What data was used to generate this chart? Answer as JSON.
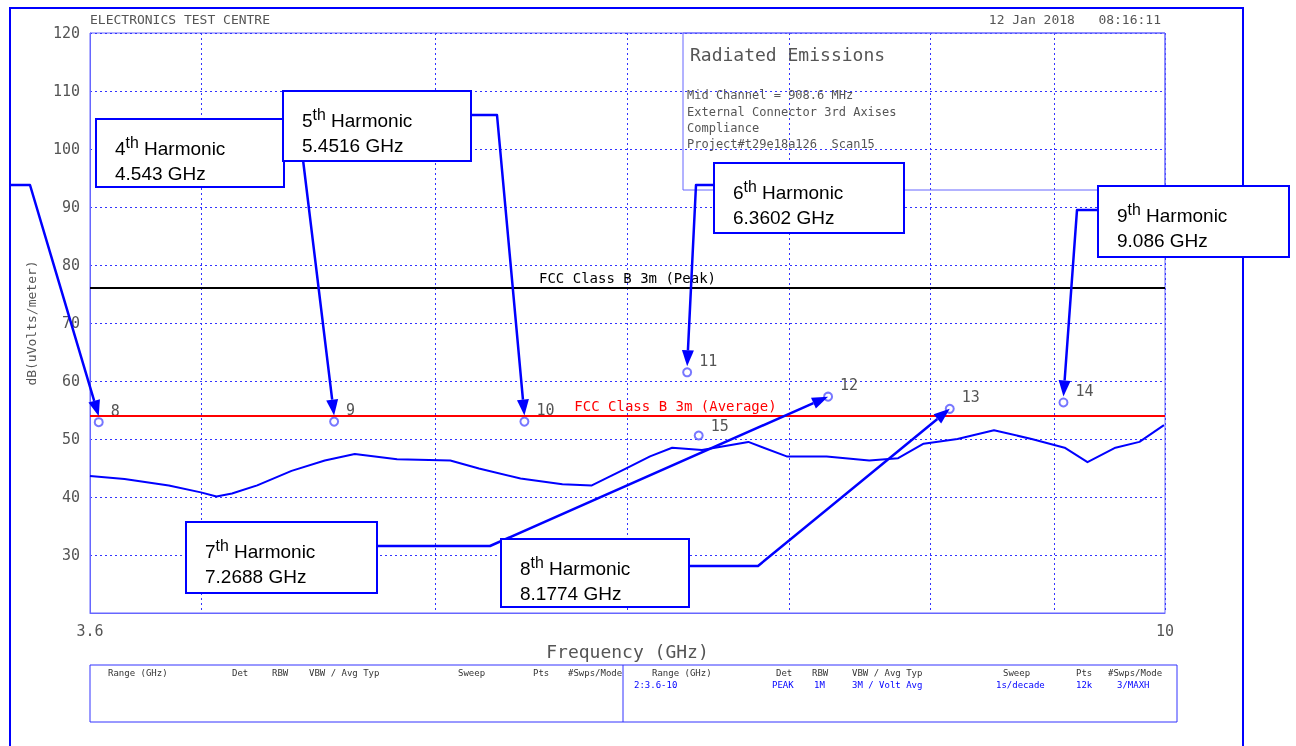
{
  "chart_data": {
    "type": "line",
    "title": "Radiated Emissions",
    "xlabel": "Frequency (GHz)",
    "ylabel": "dB(uVolts/meter)",
    "log": "x",
    "grid": true,
    "marker": "none",
    "xlim": [
      3.6,
      10
    ],
    "xticks": [
      {
        "value": 3.6,
        "label": "3.6"
      },
      {
        "value": 4,
        "label": null
      },
      {
        "value": 5,
        "label": null
      },
      {
        "value": 6,
        "label": null
      },
      {
        "value": 7,
        "label": null
      },
      {
        "value": 8,
        "label": null
      },
      {
        "value": 9,
        "label": null
      },
      {
        "value": 10,
        "label": "10"
      }
    ],
    "ylim": [
      20,
      120
    ],
    "yticks": [
      {
        "value": 20,
        "label": null
      },
      30,
      40,
      50,
      60,
      70,
      80,
      90,
      100,
      110,
      120
    ],
    "series": [
      {
        "color": "#0000ff",
        "line_style": "solid",
        "x": [
          3.6,
          3.72,
          3.88,
          4.0,
          4.06,
          4.12,
          4.22,
          4.36,
          4.5,
          4.63,
          4.82,
          5.07,
          5.21,
          5.42,
          5.64,
          5.8,
          5.99,
          6.13,
          6.26,
          6.44,
          6.73,
          6.98,
          7.25,
          7.55,
          7.76,
          7.95,
          8.21,
          8.5,
          8.81,
          9.09,
          9.29,
          9.54,
          9.76,
          9.99
        ],
        "values": [
          43.6,
          43.1,
          42.0,
          40.8,
          40.1,
          40.6,
          42.0,
          44.5,
          46.3,
          47.4,
          46.5,
          46.3,
          44.9,
          43.2,
          42.2,
          42.0,
          44.9,
          47.0,
          48.5,
          48.1,
          49.5,
          47.0,
          47.0,
          46.3,
          46.7,
          49.2,
          50.0,
          51.5,
          50.0,
          48.5,
          46.0,
          48.5,
          49.5,
          52.4
        ]
      },
      {
        "type": "scatter",
        "marker": "circle",
        "color": "#5555ff",
        "x": [
          3.63,
          4.54,
          5.44,
          6.35,
          7.26,
          8.15,
          9.08,
          6.42
        ],
        "values": [
          52.9,
          53.0,
          53.0,
          61.5,
          57.3,
          55.2,
          56.3,
          50.6
        ]
      }
    ],
    "ref_lines": [
      {
        "axis": "y",
        "value": 76,
        "label": "FCC Class B 3m (Peak)",
        "color": "#000000"
      },
      {
        "axis": "y",
        "value": 54,
        "label": "FCC Class B 3m (Average)",
        "color": "#ff0000"
      }
    ],
    "annotations": [
      "ELECTRONICS TEST CENTRE",
      "12 Jan 2018   08:16:11",
      "Mid Channel = 908.6 MHz",
      "External Connector 3rd Axises",
      "Compliance",
      "Project#t29e18a126  Scan15",
      {
        "text": "8",
        "x": 3.63,
        "y": 52.9
      },
      {
        "text": "9",
        "x": 4.54,
        "y": 53.0
      },
      {
        "text": "10",
        "x": 5.44,
        "y": 53.0
      },
      {
        "text": "11",
        "x": 6.35,
        "y": 61.5
      },
      {
        "text": "12",
        "x": 7.26,
        "y": 57.3
      },
      {
        "text": "13",
        "x": 8.15,
        "y": 55.2
      },
      {
        "text": "14",
        "x": 9.08,
        "y": 56.3
      },
      {
        "text": "15",
        "x": 6.42,
        "y": 50.6
      },
      "4$^{th}$ Harmonic\n4.543 GHz",
      "5$^{th}$ Harmonic\n5.4516 GHz",
      "6$^{th}$ Harmonic\n6.3602 GHz",
      "7$^{th}$ Harmonic\n7.2688 GHz",
      "8$^{th}$ Harmonic\n8.1774 GHz",
      "9$^{th}$ Harmonic\n9.086 GHz",
      "Range (GHz)",
      "Det",
      "RBW",
      "VBW / Avg Typ",
      "Sweep",
      "Pts",
      "#Swps/Mode",
      "Range (GHz)",
      "Det",
      "RBW",
      "VBW / Avg Typ",
      "Sweep",
      "Pts",
      "#Swps/Mode",
      "2:3.6-10",
      "PEAK",
      "1M",
      "3M / Volt Avg",
      "1s/decade",
      "12k",
      "3/MAXH"
    ]
  }
}
